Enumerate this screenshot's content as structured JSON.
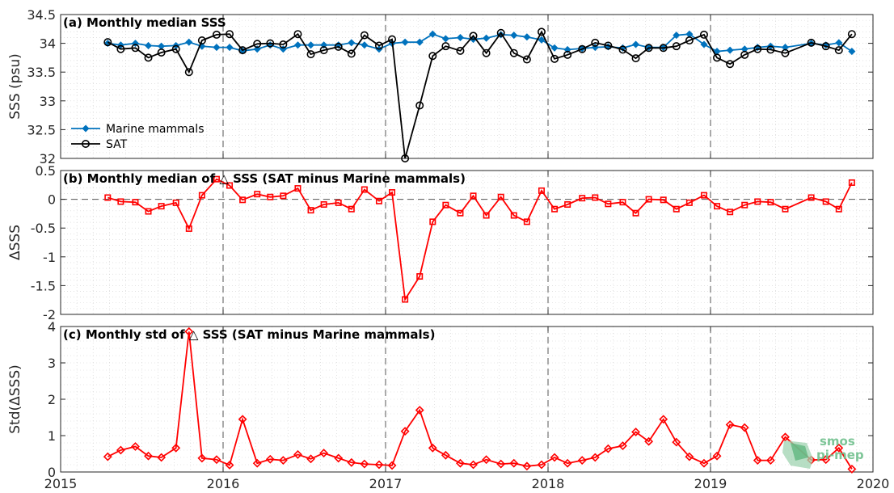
{
  "x_tick_labels": [
    "2015",
    "2016",
    "2017",
    "2018",
    "2019",
    "2020"
  ],
  "colors": {
    "marine": "#0072BD",
    "sat": "#000000",
    "diff": "#FF0000",
    "axis": "#262626",
    "grid": "#d0d0d0"
  },
  "logo": {
    "line1": "smos",
    "line2": "pi-mep"
  },
  "chart_data": [
    {
      "type": "line",
      "title": "(a) Monthly median SSS",
      "xlabel": "",
      "ylabel": "SSS (psu)",
      "xlim": [
        2015,
        2020
      ],
      "ylim": [
        32,
        34.5
      ],
      "yticks": [
        32,
        32.5,
        33,
        33.5,
        34,
        34.5
      ],
      "ytick_labels": [
        "32",
        "32.5",
        "33",
        "33.5",
        "34",
        "34.5"
      ],
      "grid": "dotted minor grid",
      "legend_location": "bottom-left",
      "x": [
        2015.29,
        2015.37,
        2015.46,
        2015.54,
        2015.62,
        2015.71,
        2015.79,
        2015.87,
        2015.96,
        2016.04,
        2016.12,
        2016.21,
        2016.29,
        2016.37,
        2016.46,
        2016.54,
        2016.62,
        2016.71,
        2016.79,
        2016.87,
        2016.96,
        2017.04,
        2017.12,
        2017.21,
        2017.29,
        2017.37,
        2017.46,
        2017.54,
        2017.62,
        2017.71,
        2017.79,
        2017.87,
        2017.96,
        2018.04,
        2018.12,
        2018.21,
        2018.29,
        2018.37,
        2018.46,
        2018.54,
        2018.62,
        2018.71,
        2018.79,
        2018.87,
        2018.96,
        2019.04,
        2019.12,
        2019.21,
        2019.29,
        2019.37,
        2019.46,
        2019.62,
        2019.71,
        2019.79,
        2019.87
      ],
      "series": [
        {
          "name": "Marine mammals",
          "marker": "diamond",
          "values": [
            34.0,
            33.97,
            34.0,
            33.96,
            33.95,
            33.96,
            34.02,
            33.95,
            33.93,
            33.93,
            33.87,
            33.9,
            33.97,
            33.9,
            33.97,
            33.97,
            33.97,
            33.97,
            34.01,
            33.97,
            33.9,
            34.0,
            34.02,
            34.02,
            34.16,
            34.08,
            34.1,
            34.07,
            34.09,
            34.15,
            34.14,
            34.11,
            34.06,
            33.92,
            33.89,
            33.91,
            33.93,
            33.94,
            33.92,
            33.98,
            33.93,
            33.93,
            34.14,
            34.16,
            33.98,
            33.86,
            33.88,
            33.9,
            33.93,
            33.95,
            33.93,
            34.0,
            33.97,
            34.01,
            33.86
          ]
        },
        {
          "name": "SAT",
          "marker": "circle",
          "values": [
            34.02,
            33.9,
            33.92,
            33.75,
            33.84,
            33.9,
            33.5,
            34.05,
            34.15,
            34.16,
            33.88,
            33.99,
            34.0,
            33.98,
            34.16,
            33.81,
            33.88,
            33.94,
            33.82,
            34.14,
            33.96,
            34.07,
            32.0,
            32.92,
            33.78,
            33.95,
            33.87,
            34.13,
            33.83,
            34.18,
            33.83,
            33.72,
            34.2,
            33.73,
            33.8,
            33.9,
            34.01,
            33.96,
            33.89,
            33.74,
            33.92,
            33.92,
            33.95,
            34.05,
            34.15,
            33.75,
            33.64,
            33.8,
            33.9,
            33.89,
            33.83,
            34.01,
            33.95,
            33.88,
            34.16
          ]
        }
      ]
    },
    {
      "type": "line",
      "title": "(b) Monthly median of △ SSS (SAT minus Marine mammals)",
      "xlabel": "",
      "ylabel": "ΔSSS",
      "xlim": [
        2015,
        2020
      ],
      "ylim": [
        -2,
        0.5
      ],
      "yticks": [
        -2,
        -1.5,
        -1,
        -0.5,
        0,
        0.5
      ],
      "ytick_labels": [
        "-2",
        "-1.5",
        "-1",
        "-0.5",
        "0",
        "0.5"
      ],
      "reference_line": 0,
      "x": [
        2015.29,
        2015.37,
        2015.46,
        2015.54,
        2015.62,
        2015.71,
        2015.79,
        2015.87,
        2015.96,
        2016.04,
        2016.12,
        2016.21,
        2016.29,
        2016.37,
        2016.46,
        2016.54,
        2016.62,
        2016.71,
        2016.79,
        2016.87,
        2016.96,
        2017.04,
        2017.12,
        2017.21,
        2017.29,
        2017.37,
        2017.46,
        2017.54,
        2017.62,
        2017.71,
        2017.79,
        2017.87,
        2017.96,
        2018.04,
        2018.12,
        2018.21,
        2018.29,
        2018.37,
        2018.46,
        2018.54,
        2018.62,
        2018.71,
        2018.79,
        2018.87,
        2018.96,
        2019.04,
        2019.12,
        2019.21,
        2019.29,
        2019.37,
        2019.46,
        2019.62,
        2019.71,
        2019.79,
        2019.87
      ],
      "series": [
        {
          "name": "",
          "marker": "square",
          "values": [
            0.03,
            -0.04,
            -0.05,
            -0.21,
            -0.12,
            -0.06,
            -0.51,
            0.07,
            0.35,
            0.24,
            -0.01,
            0.09,
            0.04,
            0.06,
            0.19,
            -0.19,
            -0.09,
            -0.06,
            -0.17,
            0.17,
            -0.03,
            0.12,
            -1.74,
            -1.34,
            -0.39,
            -0.1,
            -0.24,
            0.06,
            -0.28,
            0.04,
            -0.28,
            -0.39,
            0.15,
            -0.17,
            -0.09,
            0.02,
            0.03,
            -0.08,
            -0.05,
            -0.24,
            0.0,
            -0.01,
            -0.17,
            -0.06,
            0.07,
            -0.12,
            -0.22,
            -0.1,
            -0.04,
            -0.05,
            -0.17,
            0.03,
            -0.04,
            -0.17,
            0.29
          ]
        }
      ]
    },
    {
      "type": "line",
      "title": "(c) Monthly std of △ SSS (SAT minus Marine mammals)",
      "xlabel": "",
      "ylabel": "Std(ΔSSS)",
      "xlim": [
        2015,
        2020
      ],
      "ylim": [
        0,
        4
      ],
      "yticks": [
        0,
        1,
        2,
        3,
        4
      ],
      "ytick_labels": [
        "0",
        "1",
        "2",
        "3",
        "4"
      ],
      "x": [
        2015.29,
        2015.37,
        2015.46,
        2015.54,
        2015.62,
        2015.71,
        2015.79,
        2015.87,
        2015.96,
        2016.04,
        2016.12,
        2016.21,
        2016.29,
        2016.37,
        2016.46,
        2016.54,
        2016.62,
        2016.71,
        2016.79,
        2016.87,
        2016.96,
        2017.04,
        2017.12,
        2017.21,
        2017.29,
        2017.37,
        2017.46,
        2017.54,
        2017.62,
        2017.71,
        2017.79,
        2017.87,
        2017.96,
        2018.04,
        2018.12,
        2018.21,
        2018.29,
        2018.37,
        2018.46,
        2018.54,
        2018.62,
        2018.71,
        2018.79,
        2018.87,
        2018.96,
        2019.04,
        2019.12,
        2019.21,
        2019.29,
        2019.37,
        2019.46,
        2019.62,
        2019.71,
        2019.79,
        2019.87
      ],
      "series": [
        {
          "name": "",
          "marker": "diamond",
          "values": [
            0.42,
            0.6,
            0.7,
            0.44,
            0.4,
            0.66,
            3.86,
            0.38,
            0.34,
            0.19,
            1.45,
            0.24,
            0.35,
            0.32,
            0.48,
            0.36,
            0.52,
            0.38,
            0.26,
            0.22,
            0.2,
            0.18,
            1.12,
            1.7,
            0.66,
            0.46,
            0.24,
            0.2,
            0.34,
            0.22,
            0.24,
            0.16,
            0.2,
            0.4,
            0.24,
            0.32,
            0.4,
            0.64,
            0.72,
            1.1,
            0.84,
            1.45,
            0.82,
            0.42,
            0.24,
            0.44,
            1.3,
            1.22,
            0.32,
            0.32,
            0.96,
            0.33,
            0.34,
            0.66,
            0.08
          ]
        }
      ]
    }
  ]
}
